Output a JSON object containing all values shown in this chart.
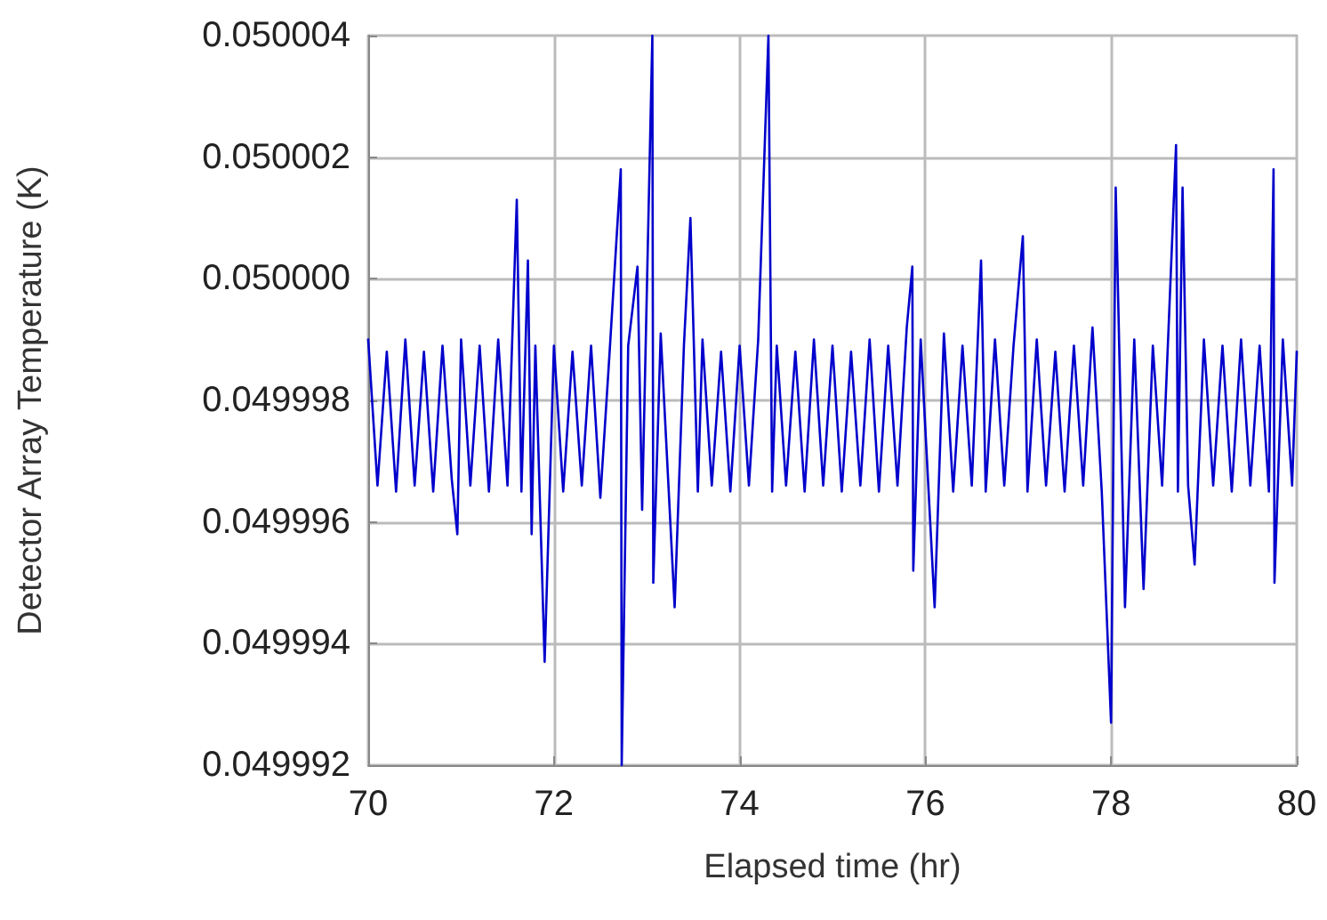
{
  "chart_data": {
    "type": "line",
    "xlabel": "Elapsed time (hr)",
    "ylabel": "Detector Array Temperature (K)",
    "xlim": [
      70,
      80
    ],
    "xticks": [
      70,
      72,
      74,
      76,
      78,
      80
    ],
    "ylim": [
      0.049992,
      0.050004
    ],
    "yticks": [
      0.049992,
      0.049994,
      0.049996,
      0.049998,
      {
        "value": 0.05,
        "label": "0.050000"
      },
      0.050002,
      0.050004
    ],
    "grid": true,
    "marker": "none",
    "line_style": "solid",
    "series": [
      {
        "color": "#0000cc",
        "x": [
          70.0,
          70.1,
          70.2,
          70.3,
          70.4,
          70.5,
          70.6,
          70.7,
          70.8,
          70.9,
          70.96,
          71.0,
          71.1,
          71.2,
          71.3,
          71.4,
          71.5,
          71.6,
          71.65,
          71.72,
          71.76,
          71.8,
          71.9,
          72.0,
          72.1,
          72.2,
          72.3,
          72.4,
          72.5,
          72.6,
          72.72,
          72.73,
          72.8,
          72.9,
          72.95,
          73.06,
          73.07,
          73.15,
          73.3,
          73.4,
          73.47,
          73.55,
          73.6,
          73.7,
          73.8,
          73.9,
          74.0,
          74.1,
          74.2,
          74.31,
          74.35,
          74.4,
          74.5,
          74.6,
          74.7,
          74.8,
          74.9,
          75.0,
          75.1,
          75.2,
          75.3,
          75.4,
          75.5,
          75.6,
          75.7,
          75.8,
          75.86,
          75.87,
          75.95,
          76.1,
          76.2,
          76.3,
          76.4,
          76.5,
          76.6,
          76.65,
          76.75,
          76.85,
          76.95,
          77.05,
          77.1,
          77.2,
          77.3,
          77.4,
          77.5,
          77.6,
          77.7,
          77.8,
          77.9,
          78.0,
          78.05,
          78.15,
          78.25,
          78.35,
          78.45,
          78.55,
          78.7,
          78.72,
          78.77,
          78.83,
          78.9,
          79.0,
          79.1,
          79.2,
          79.3,
          79.4,
          79.5,
          79.6,
          79.7,
          79.75,
          79.76,
          79.85,
          79.95,
          80.0
        ],
        "values": [
          0.049999,
          0.0499966,
          0.0499988,
          0.0499965,
          0.049999,
          0.0499966,
          0.0499988,
          0.0499965,
          0.0499989,
          0.0499967,
          0.0499958,
          0.049999,
          0.0499966,
          0.0499989,
          0.0499965,
          0.049999,
          0.0499966,
          0.0500013,
          0.0499965,
          0.0500003,
          0.0499958,
          0.0499989,
          0.0499937,
          0.0499989,
          0.0499965,
          0.0499988,
          0.0499966,
          0.0499989,
          0.0499964,
          0.0499988,
          0.0500018,
          0.049992,
          0.0499989,
          0.0500002,
          0.0499962,
          0.050004,
          0.049995,
          0.0499991,
          0.0499946,
          0.0499989,
          0.050001,
          0.0499965,
          0.049999,
          0.0499966,
          0.0499988,
          0.0499965,
          0.0499989,
          0.0499966,
          0.049999,
          0.050004,
          0.0499965,
          0.0499989,
          0.0499966,
          0.0499988,
          0.0499965,
          0.049999,
          0.0499966,
          0.0499989,
          0.0499965,
          0.0499988,
          0.0499966,
          0.049999,
          0.0499965,
          0.0499989,
          0.0499966,
          0.0499992,
          0.0500002,
          0.0499952,
          0.049999,
          0.0499946,
          0.0499991,
          0.0499965,
          0.0499989,
          0.0499966,
          0.0500003,
          0.0499965,
          0.049999,
          0.0499966,
          0.0499989,
          0.0500007,
          0.0499965,
          0.049999,
          0.0499966,
          0.0499988,
          0.0499965,
          0.0499989,
          0.0499966,
          0.0499992,
          0.0499965,
          0.0499927,
          0.0500015,
          0.0499946,
          0.049999,
          0.0499949,
          0.0499989,
          0.0499966,
          0.0500022,
          0.0499965,
          0.0500015,
          0.0499966,
          0.0499953,
          0.049999,
          0.0499966,
          0.0499989,
          0.0499965,
          0.049999,
          0.0499966,
          0.0499989,
          0.0499965,
          0.0500018,
          0.049995,
          0.049999,
          0.0499966,
          0.0499988
        ]
      }
    ]
  }
}
